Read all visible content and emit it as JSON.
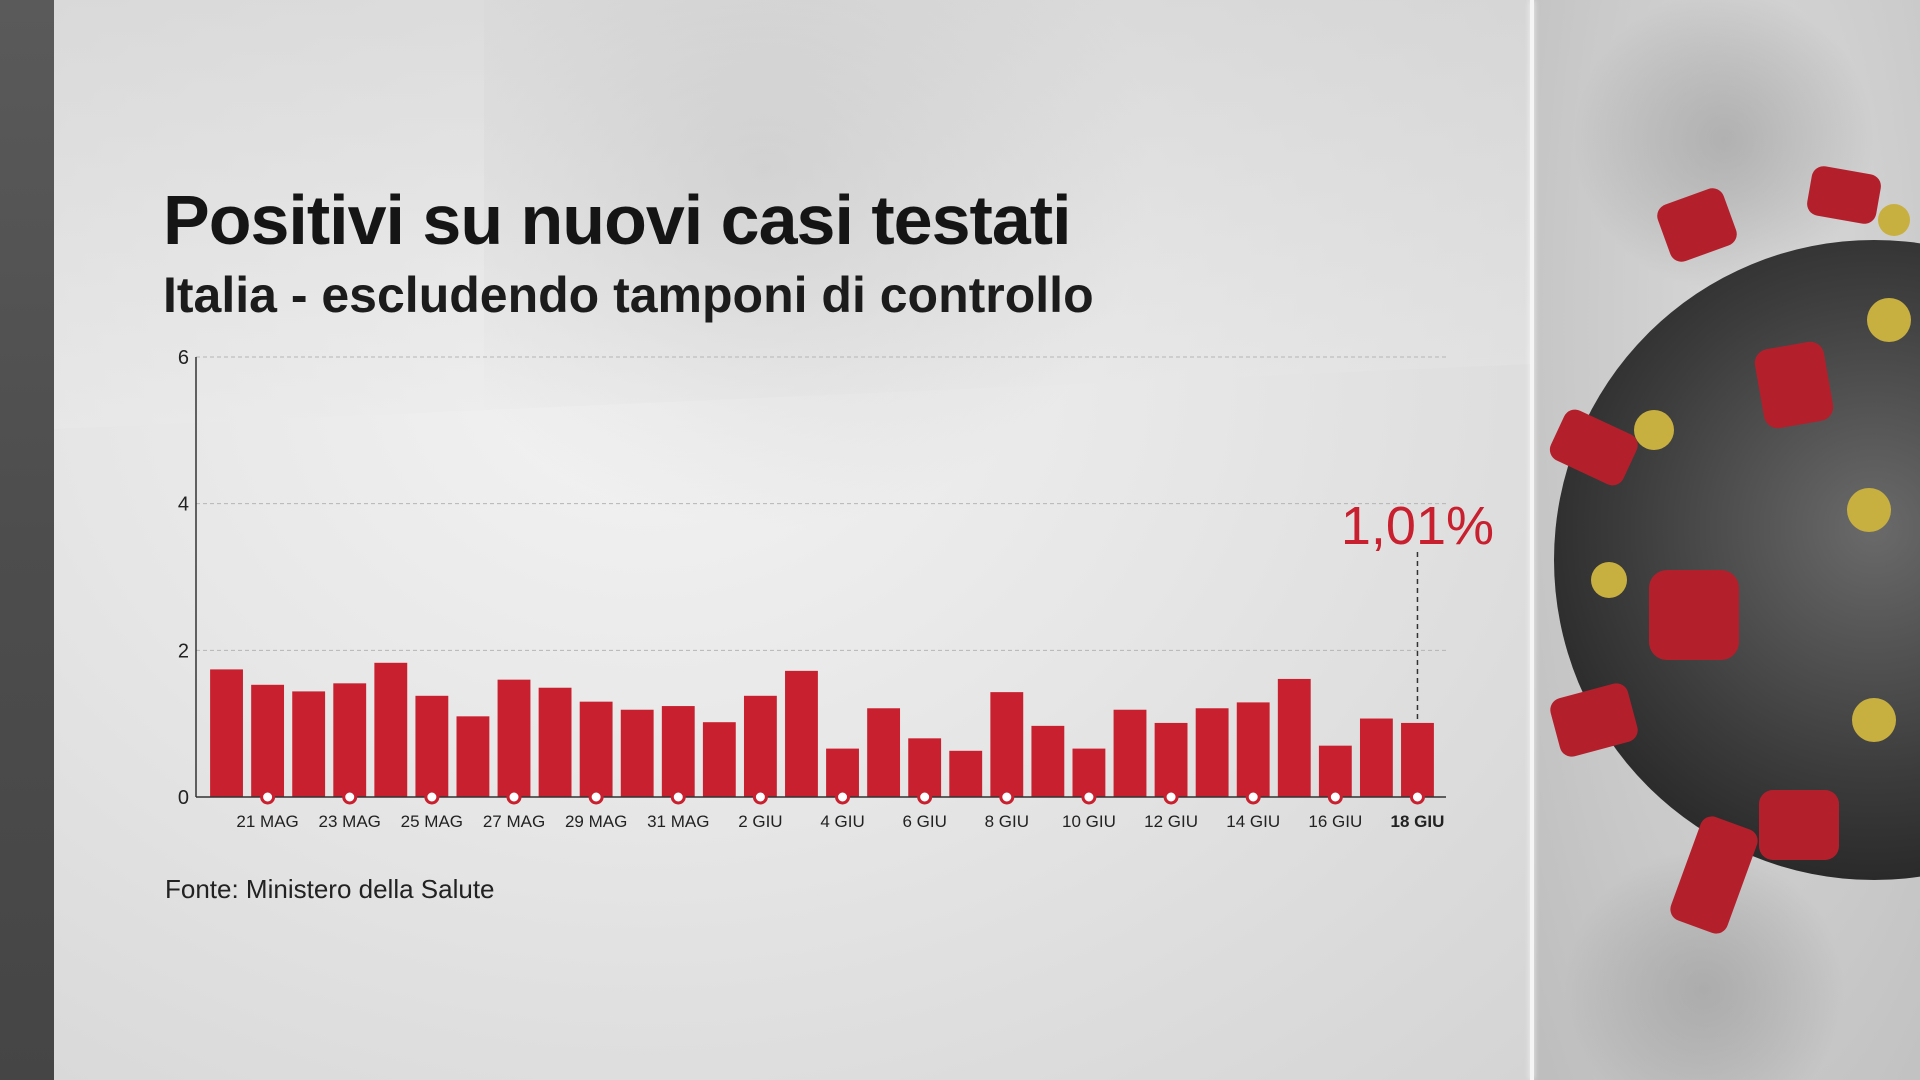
{
  "title": "Positivi su nuovi casi testati",
  "subtitle": "Italia - escludendo tamponi di controllo",
  "source": "Fonte: Ministero della Salute",
  "colors": {
    "bar": "#c8202e",
    "annotation": "#c8202e",
    "text": "#151515",
    "grid": "#b5b5b5"
  },
  "chart_data": {
    "type": "bar",
    "categories": [
      "20 MAG",
      "21 MAG",
      "22 MAG",
      "23 MAG",
      "24 MAG",
      "25 MAG",
      "26 MAG",
      "27 MAG",
      "28 MAG",
      "29 MAG",
      "30 MAG",
      "31 MAG",
      "1 GIU",
      "2 GIU",
      "3 GIU",
      "4 GIU",
      "5 GIU",
      "6 GIU",
      "7 GIU",
      "8 GIU",
      "9 GIU",
      "10 GIU",
      "11 GIU",
      "12 GIU",
      "13 GIU",
      "14 GIU",
      "15 GIU",
      "16 GIU",
      "17 GIU",
      "18 GIU"
    ],
    "values": [
      1.74,
      1.53,
      1.44,
      1.55,
      1.83,
      1.38,
      1.1,
      1.6,
      1.49,
      1.3,
      1.19,
      1.24,
      1.02,
      1.38,
      1.72,
      0.66,
      1.21,
      0.8,
      0.63,
      1.43,
      0.97,
      0.66,
      1.19,
      1.01,
      1.21,
      1.29,
      1.61,
      0.7,
      1.07,
      1.01
    ],
    "x_tick_labels": [
      "21 MAG",
      "23 MAG",
      "25 MAG",
      "27 MAG",
      "29 MAG",
      "31 MAG",
      "2 GIU",
      "4 GIU",
      "6 GIU",
      "8 GIU",
      "10 GIU",
      "12 GIU",
      "14 GIU",
      "16 GIU",
      "18 GIU"
    ],
    "y_ticks": [
      "0",
      "2",
      "4",
      "6"
    ],
    "ylim": [
      0,
      6
    ],
    "xlabel": "",
    "ylabel": "",
    "grid": true,
    "annotation": {
      "label": "1,01%",
      "category": "18 GIU"
    }
  }
}
